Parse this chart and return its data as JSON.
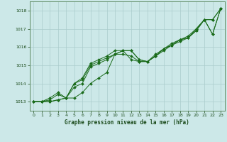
{
  "title": "Graphe pression niveau de la mer (hPa)",
  "background_color": "#cce8e8",
  "grid_color": "#aacccc",
  "line_color": "#1a6b1a",
  "marker_color": "#1a6b1a",
  "xlim": [
    -0.5,
    23.5
  ],
  "ylim": [
    1012.5,
    1018.5
  ],
  "yticks": [
    1013,
    1014,
    1015,
    1016,
    1017,
    1018
  ],
  "xticks": [
    0,
    1,
    2,
    3,
    4,
    5,
    6,
    7,
    8,
    9,
    10,
    11,
    12,
    13,
    14,
    15,
    16,
    17,
    18,
    19,
    20,
    21,
    22,
    23
  ],
  "series": [
    [
      1013.0,
      1013.0,
      1013.0,
      1013.1,
      1013.2,
      1013.2,
      1013.5,
      1014.0,
      1014.3,
      1014.6,
      1015.6,
      1015.8,
      1015.8,
      1015.3,
      1015.2,
      1015.5,
      1015.9,
      1016.1,
      1016.4,
      1016.5,
      1016.9,
      1017.5,
      1017.5,
      1018.1
    ],
    [
      1013.0,
      1013.0,
      1013.0,
      1013.1,
      1013.2,
      1013.8,
      1014.0,
      1014.9,
      1015.1,
      1015.3,
      1015.6,
      1015.8,
      1015.8,
      1015.3,
      1015.2,
      1015.5,
      1015.9,
      1016.1,
      1016.4,
      1016.5,
      1016.9,
      1017.5,
      1016.7,
      1018.1
    ],
    [
      1013.0,
      1013.0,
      1013.1,
      1013.4,
      1013.2,
      1014.0,
      1014.2,
      1015.0,
      1015.2,
      1015.4,
      1015.6,
      1015.6,
      1015.5,
      1015.2,
      1015.2,
      1015.5,
      1015.8,
      1016.1,
      1016.3,
      1016.5,
      1017.0,
      1017.5,
      1016.7,
      1018.1
    ],
    [
      1013.0,
      1013.0,
      1013.2,
      1013.5,
      1013.2,
      1014.0,
      1014.3,
      1015.1,
      1015.3,
      1015.5,
      1015.8,
      1015.8,
      1015.3,
      1015.2,
      1015.2,
      1015.6,
      1015.9,
      1016.2,
      1016.4,
      1016.6,
      1017.0,
      1017.5,
      1017.5,
      1018.1
    ]
  ]
}
